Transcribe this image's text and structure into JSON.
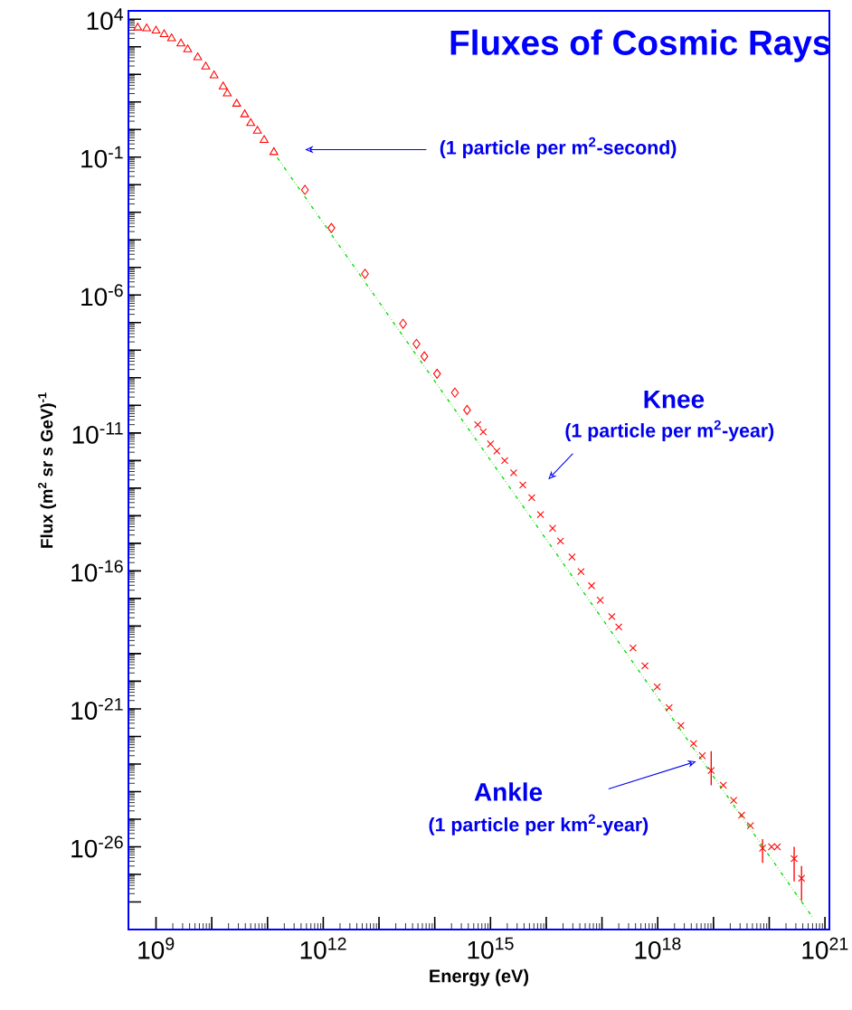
{
  "chart_data": {
    "type": "scatter",
    "title": "Fluxes of Cosmic Rays",
    "xlabel": "Energy (eV)",
    "ylabel": "Flux (m$^{2}$ sr s GeV)$^{-1}$",
    "log": "xy",
    "xlim": [
      320000000.0,
      1.2e+21
    ],
    "ylim": [
      1e-29,
      20000.0
    ],
    "xticks": [
      {
        "value": 1000000000.0,
        "label": "10$^{9}$"
      },
      {
        "value": 10000000000.0,
        "label": null
      },
      {
        "value": 100000000000.0,
        "label": null
      },
      {
        "value": 1000000000000.0,
        "label": "10$^{12}$"
      },
      {
        "value": 10000000000000.0,
        "label": null
      },
      {
        "value": 100000000000000.0,
        "label": null
      },
      {
        "value": 1000000000000000.0,
        "label": "10$^{15}$"
      },
      {
        "value": 1e+16,
        "label": null
      },
      {
        "value": 1e+17,
        "label": null
      },
      {
        "value": 1e+18,
        "label": "10$^{18}$"
      },
      {
        "value": 1e+19,
        "label": null
      },
      {
        "value": 1e+20,
        "label": null
      },
      {
        "value": 1e+21,
        "label": "10$^{21}$"
      }
    ],
    "yticks": [
      {
        "value": 1e-28,
        "label": null
      },
      {
        "value": 1e-27,
        "label": null
      },
      {
        "value": 1e-26,
        "label": "10$^{-26}$"
      },
      {
        "value": 1e-25,
        "label": null
      },
      {
        "value": 1e-24,
        "label": null
      },
      {
        "value": 1e-23,
        "label": null
      },
      {
        "value": 1e-22,
        "label": null
      },
      {
        "value": 1e-21,
        "label": "10$^{-21}$"
      },
      {
        "value": 1e-20,
        "label": null
      },
      {
        "value": 1e-19,
        "label": null
      },
      {
        "value": 1e-18,
        "label": null
      },
      {
        "value": 1e-17,
        "label": null
      },
      {
        "value": 1e-16,
        "label": "10$^{-16}$"
      },
      {
        "value": 1e-15,
        "label": null
      },
      {
        "value": 1e-14,
        "label": null
      },
      {
        "value": 1e-13,
        "label": null
      },
      {
        "value": 1e-12,
        "label": null
      },
      {
        "value": 1e-11,
        "label": "10$^{-11}$"
      },
      {
        "value": 1e-10,
        "label": null
      },
      {
        "value": 1e-09,
        "label": null
      },
      {
        "value": 1e-08,
        "label": null
      },
      {
        "value": 1e-07,
        "label": null
      },
      {
        "value": 1e-06,
        "label": "10$^{-6}$"
      },
      {
        "value": 1e-05,
        "label": null
      },
      {
        "value": 0.0001,
        "label": null
      },
      {
        "value": 0.001,
        "label": null
      },
      {
        "value": 0.01,
        "label": null
      },
      {
        "value": 0.1,
        "label": "10$^{-1}$"
      },
      {
        "value": 1,
        "label": null
      },
      {
        "value": 10,
        "label": null
      },
      {
        "value": 100,
        "label": null
      },
      {
        "value": 1000,
        "label": null
      },
      {
        "value": 10000.0,
        "label": "10$^{4}$"
      }
    ],
    "series": [
      {
        "marker": "triangle",
        "color": "#ff0000",
        "x": [
          470000000.0,
          680000000.0,
          1000000000.0,
          1400000000.0,
          1900000000.0,
          2800000000.0,
          3700000000.0,
          5600000000.0,
          7800000000.0,
          11000000000.0,
          16000000000.0,
          19000000000.0,
          28000000000.0,
          39000000000.0,
          50000000000.0,
          66000000000.0,
          87000000000.0,
          130000000000.0
        ],
        "values": [
          4900,
          4600,
          3800,
          2800,
          2000,
          1300,
          790,
          410,
          190,
          91,
          36,
          20,
          8.5,
          3.5,
          1.7,
          0.89,
          0.41,
          0.15
        ]
      },
      {
        "marker": "diamond",
        "color": "#ff0000",
        "x": [
          470000000000.0,
          1400000000000.0,
          5600000000000.0,
          27000000000000.0,
          47000000000000.0,
          65000000000000.0,
          110000000000000.0,
          230000000000000.0,
          380000000000000.0
        ],
        "values": [
          0.0065,
          0.00027,
          5.9e-06,
          9.1e-08,
          1.7e-08,
          6e-09,
          1.4e-09,
          2.9e-10,
          6.8e-11
        ]
      },
      {
        "marker": "cross",
        "color": "#ff0000",
        "x": [
          590000000000000.0,
          740000000000000.0,
          1000000000000000.0,
          1300000000000000.0,
          1800000000000000.0,
          2600000000000000.0,
          3800000000000000.0,
          5500000000000000.0,
          7900000000000000.0,
          1.3e+16,
          1.8e+16,
          2.9e+16,
          4.2e+16,
          6.5e+16,
          9.3e+16,
          1.5e+17,
          2e+17,
          3.6e+17,
          5.9e+17,
          9.8e+17,
          1.6e+18,
          2.6e+18,
          4.4e+18,
          6.3e+18,
          9.1e+18,
          1.5e+19,
          2.3e+19,
          3.2e+19,
          4.6e+19,
          7.6e+19,
          1.1e+20,
          1.4e+20,
          2.8e+20,
          3.8e+20
        ],
        "values": [
          2e-11,
          1.1e-11,
          4e-12,
          2.2e-12,
          1e-12,
          3.6e-13,
          1.3e-13,
          4.5e-14,
          1.1e-14,
          3.5e-15,
          1.2e-15,
          3.2e-16,
          9.5e-17,
          2.9e-17,
          8.7e-18,
          2.2e-18,
          9.3e-19,
          1.6e-19,
          3.6e-20,
          6.3e-21,
          1.1e-21,
          2.5e-22,
          5.5e-23,
          2e-23,
          5.8e-24,
          1.7e-24,
          4.8e-25,
          1.4e-25,
          5.8e-26,
          8.9e-27,
          1e-26,
          1e-26,
          3.7e-27,
          7.2e-28
        ],
        "errors": [
          null,
          null,
          null,
          null,
          null,
          null,
          null,
          null,
          null,
          null,
          null,
          null,
          null,
          null,
          null,
          null,
          null,
          null,
          null,
          null,
          null,
          null,
          null,
          null,
          [
            1.7e-24,
            2.9e-23
          ],
          null,
          null,
          null,
          null,
          [
            2.6e-27,
            1.9e-26
          ],
          null,
          null,
          [
            5.6e-28,
            1e-26
          ],
          [
            1.1e-28,
            2e-27
          ]
        ]
      },
      {
        "type": "line",
        "line_style": "dotted",
        "color": "#00dd00",
        "x": [
          150000000000.0,
          5.9e+20
        ],
        "values": [
          0.095,
          2.9e-29
        ]
      }
    ],
    "annotations": [
      "(1 particle per m$^{2}$-second)",
      "Knee",
      "(1 particle per m$^{2}$-year)",
      "Ankle",
      "(1 particle per km$^{2}$-year)"
    ]
  }
}
